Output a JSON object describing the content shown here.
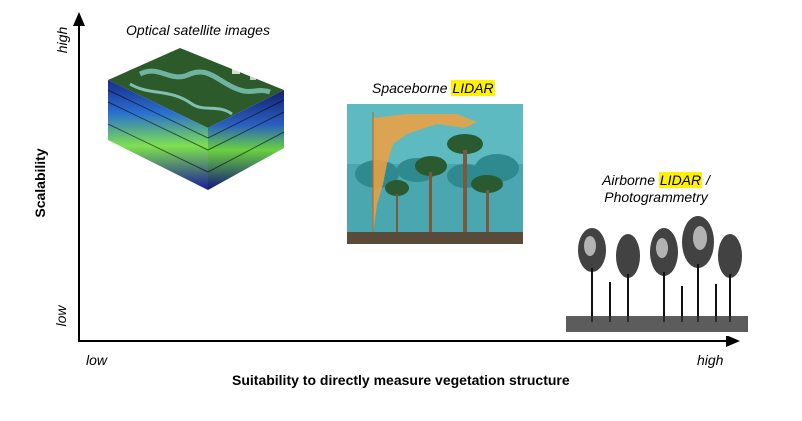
{
  "axes": {
    "y_label": "Scalability",
    "y_low": "low",
    "y_high": "high",
    "x_label": "Suitability to directly measure vegetation structure",
    "x_low": "low",
    "x_high": "high"
  },
  "items": {
    "optical": {
      "caption": "Optical satellite images"
    },
    "spaceborne": {
      "caption_prefix": "Spaceborne ",
      "caption_highlight": "LIDAR"
    },
    "airborne": {
      "line1_prefix": "Airborne ",
      "line1_highlight": "LIDAR",
      "line1_suffix": " /",
      "line2": "Photogrammetry"
    }
  },
  "colors": {
    "highlight": "#fff200",
    "lidar_orange": "#f0a040",
    "forest_teal": "#4aa7b0"
  }
}
